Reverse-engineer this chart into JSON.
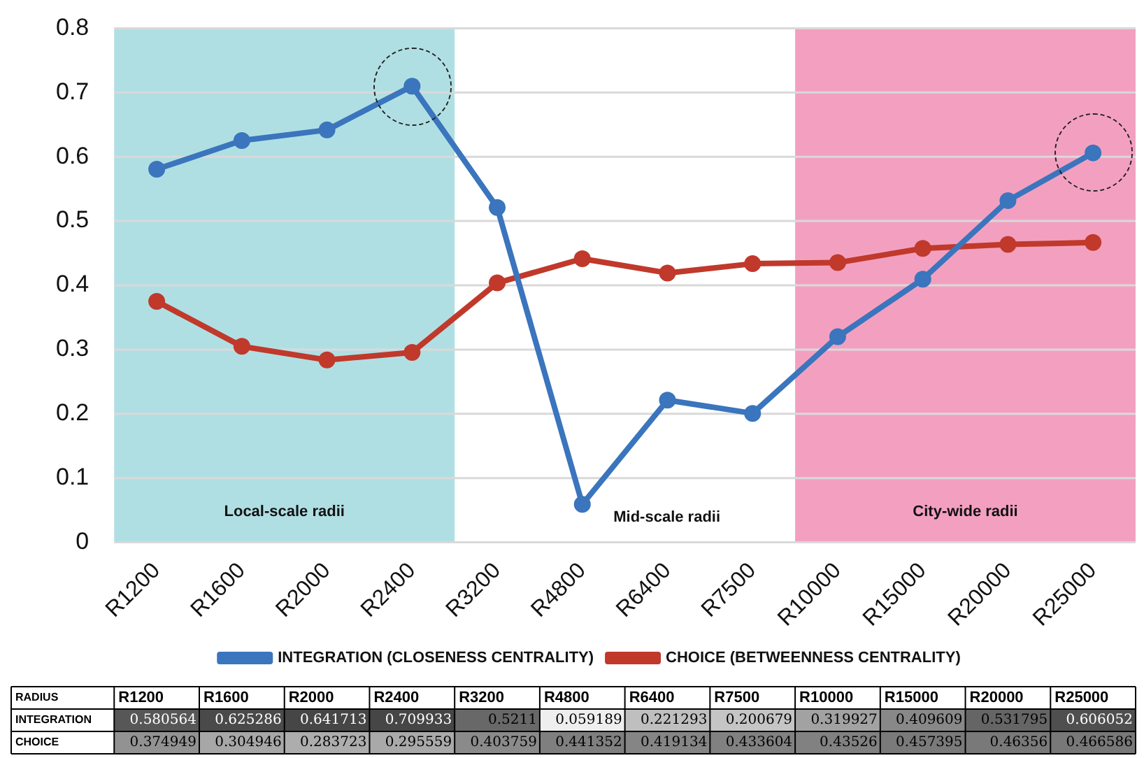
{
  "chart_data": {
    "type": "line",
    "categories": [
      "R1200",
      "R1600",
      "R2000",
      "R2400",
      "R3200",
      "R4800",
      "R6400",
      "R7500",
      "R10000",
      "R15000",
      "R20000",
      "R25000"
    ],
    "series": [
      {
        "name": "INTEGRATION (CLOSENESS CENTRALITY)",
        "color": "#3a75bd",
        "values": [
          0.580564,
          0.625286,
          0.641713,
          0.709933,
          0.5211,
          0.059189,
          0.221293,
          0.200679,
          0.319927,
          0.409609,
          0.531795,
          0.606052
        ]
      },
      {
        "name": "CHOICE (BETWEENNESS CENTRALITY)",
        "color": "#c0392b",
        "values": [
          0.374949,
          0.304946,
          0.283723,
          0.295559,
          0.403759,
          0.441352,
          0.419134,
          0.433604,
          0.43526,
          0.457395,
          0.46356,
          0.466586
        ]
      }
    ],
    "ylim": [
      0,
      0.8
    ],
    "yticks": [
      0,
      0.1,
      0.2,
      0.3,
      0.4,
      0.5,
      0.6,
      0.7,
      0.8
    ],
    "grid": "y",
    "marker": "circle",
    "line_style": "solid",
    "legend": "bottom",
    "data_labels": true,
    "bands": [
      {
        "axis": "x",
        "from": "R1200",
        "to": "R2400",
        "label": "Local-scale radii",
        "color": "#b0dfe3"
      },
      {
        "axis": "x",
        "from": "R10000",
        "to": "R25000",
        "label": "City-wide radii",
        "color": "#f3a0c0"
      }
    ],
    "annotations": [
      "RADIUS",
      "INTEGRATION",
      "CHOICE",
      "Mid-scale radii"
    ]
  }
}
